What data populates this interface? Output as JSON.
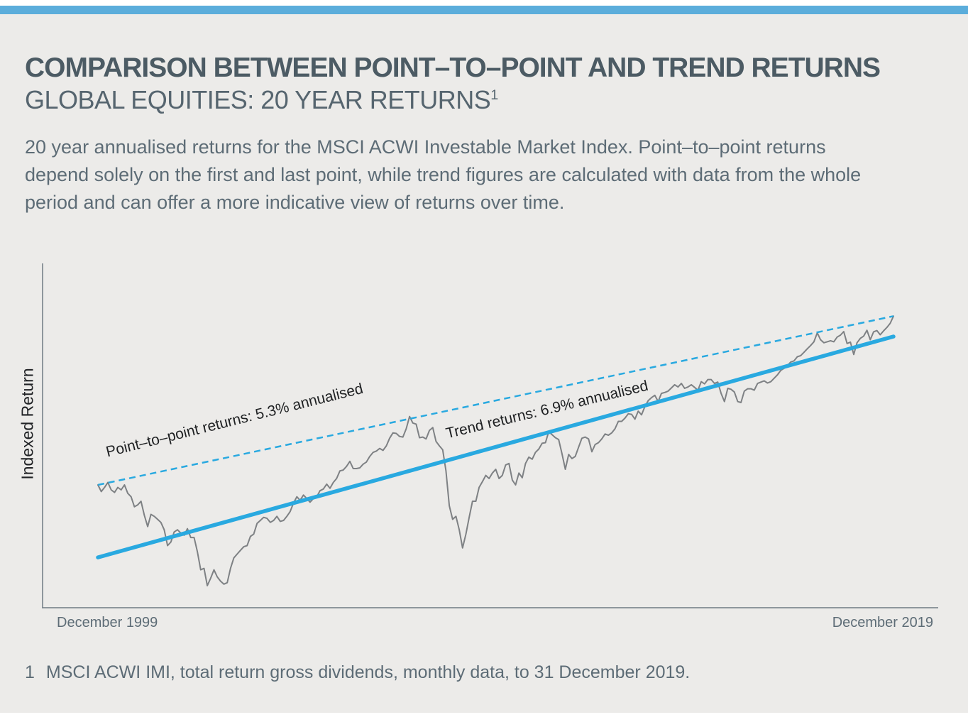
{
  "page": {
    "title": "COMPARISON BETWEEN POINT–TO–POINT AND TREND RETURNS",
    "subtitle": "GLOBAL EQUITIES: 20 YEAR RETURNS",
    "subtitle_superscript": "1",
    "description_lines": [
      "20 year annualised returns for the MSCI ACWI Investable Market Index. Point–to–point returns",
      "depend solely on the first and last point, while trend figures are calculated with data from the whole",
      "period and can offer a more indicative view of returns over time."
    ],
    "footnote_marker": "1",
    "footnote": "MSCI ACWI IMI, total return gross dividends, monthly data, to 31 December 2019."
  },
  "colors": {
    "accent_bar_blue": "#5baddb",
    "chart_blue": "#29a9e0",
    "index_line_gray": "#7e8184",
    "axis_gray": "#6f7b83",
    "background": "#ecebe9",
    "heading_slate": "#4c5b64",
    "body_slate": "#5d6c76",
    "annotation_black": "#1f2123"
  },
  "chart_data": {
    "type": "line",
    "title": "Comparison between point-to-point and trend returns, global equities 20 year returns",
    "ylabel": "Indexed Return",
    "xlabel": "",
    "scale": "log",
    "grid": false,
    "legend": "none",
    "x_axis": {
      "start_label": "December 1999",
      "end_label": "December 2019",
      "frequency": "monthly"
    },
    "index_base": 100,
    "annotations": [
      {
        "label": "Point–to–point returns: 5.3% annualised",
        "applies_to": "point_to_point_line"
      },
      {
        "label": "Trend returns: 6.9% annualised",
        "applies_to": "trend_line"
      }
    ],
    "series": [
      {
        "name": "MSCI ACWI IMI indexed return (Dec 1999 = 100, monthly)",
        "style": "jagged gray line",
        "values": [
          100,
          96,
          98.5,
          101.5,
          97,
          95.5,
          98.5,
          97,
          100,
          95,
          93,
          87.5,
          88.5,
          90.5,
          83,
          77.5,
          83.5,
          82.5,
          81,
          79.5,
          76,
          69,
          70.5,
          75,
          76,
          74.5,
          73.5,
          76.5,
          72.5,
          72.5,
          66.5,
          59.5,
          60,
          54,
          56.5,
          59.5,
          57,
          55.5,
          54.5,
          55,
          60,
          64,
          65.5,
          67,
          68.5,
          69,
          73,
          74,
          79,
          80.5,
          82,
          81.5,
          79.5,
          80.5,
          82.5,
          80,
          80.5,
          82.5,
          85,
          89.5,
          93,
          91,
          94,
          92,
          90,
          92,
          93,
          96.5,
          97.5,
          100.5,
          98,
          101.5,
          104,
          109,
          109.5,
          112,
          115.5,
          110.5,
          110.5,
          111,
          113.5,
          115,
          119,
          122,
          123,
          125,
          123.5,
          127,
          133,
          137.5,
          137,
          134.5,
          134,
          141,
          152,
          146,
          145,
          133.5,
          134,
          132.5,
          139.5,
          142,
          130.5,
          127,
          124,
          109,
          88,
          81,
          82.5,
          76,
          68,
          74,
          82,
          90.5,
          90.5,
          98.5,
          102,
          106,
          104,
          107.5,
          110,
          104,
          106,
          113,
          114,
          103,
          100,
          107.5,
          104.5,
          114,
          118.5,
          117,
          122,
          124.5,
          129,
          129.5,
          138.5,
          136,
          133.5,
          132,
          121,
          110,
          120.5,
          117.5,
          119,
          126,
          133,
          134,
          132.5,
          122.5,
          128,
          129.5,
          132.5,
          136.5,
          135.5,
          137.5,
          141,
          147.5,
          147.5,
          150.5,
          154.5,
          154,
          149.5,
          157,
          153.5,
          161.5,
          167.5,
          170.5,
          173,
          166.5,
          175,
          176,
          177.5,
          181,
          184.5,
          182,
          186,
          180.5,
          182,
          184.5,
          181.5,
          178.5,
          188,
          185.5,
          190.5,
          190.5,
          186,
          187.5,
          175,
          166.5,
          180.5,
          179.5,
          176.5,
          166.5,
          165.5,
          177.5,
          180,
          180,
          178.5,
          186,
          187.5,
          189,
          186.5,
          188,
          192,
          196,
          201.5,
          204,
          207.5,
          212,
          213.5,
          219,
          220.5,
          225,
          230,
          234.5,
          240,
          253.5,
          243,
          238.5,
          240,
          241.5,
          240,
          247,
          250,
          255.5,
          237.5,
          239.5,
          222,
          238.5,
          245,
          248.5,
          257.5,
          243,
          255,
          257,
          250.5,
          256.5,
          262,
          268.5,
          280.7
        ]
      },
      {
        "name": "Point-to-point return line",
        "annualised_pct": 5.3,
        "style": "dashed blue straight line connecting first and last points",
        "values": [
          100,
          280.7
        ]
      },
      {
        "name": "Trend return line",
        "annualised_pct": 6.9,
        "style": "solid blue straight regression line",
        "values": [
          64.2,
          247.8
        ]
      }
    ]
  }
}
